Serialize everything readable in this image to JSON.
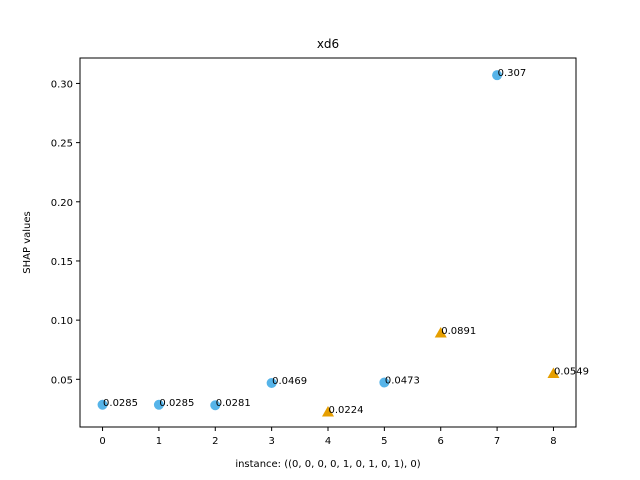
{
  "chart_data": {
    "type": "scatter",
    "title": "xd6",
    "xlabel": "instance: ((0, 0, 0, 0, 1, 0, 1, 0, 1), 0)",
    "ylabel": "SHAP values",
    "xlim": [
      -0.4,
      8.4
    ],
    "ylim": [
      0.0097,
      0.3215
    ],
    "x_ticks": [
      0,
      1,
      2,
      3,
      4,
      5,
      6,
      7,
      8
    ],
    "y_ticks": [
      0.05,
      0.1,
      0.15,
      0.2,
      0.25,
      0.3
    ],
    "y_tick_labels": [
      "0.05",
      "0.10",
      "0.15",
      "0.20",
      "0.25",
      "0.30"
    ],
    "grid": false,
    "legend": "none",
    "points": [
      {
        "x": 0,
        "y": 0.0285,
        "label": "0.0285",
        "marker": "circle",
        "color": "#56b4e9"
      },
      {
        "x": 1,
        "y": 0.0285,
        "label": "0.0285",
        "marker": "circle",
        "color": "#56b4e9"
      },
      {
        "x": 2,
        "y": 0.0281,
        "label": "0.0281",
        "marker": "circle",
        "color": "#56b4e9"
      },
      {
        "x": 3,
        "y": 0.0469,
        "label": "0.0469",
        "marker": "circle",
        "color": "#56b4e9"
      },
      {
        "x": 4,
        "y": 0.0224,
        "label": "0.0224",
        "marker": "triangle",
        "color": "#e69f00"
      },
      {
        "x": 5,
        "y": 0.0473,
        "label": "0.0473",
        "marker": "circle",
        "color": "#56b4e9"
      },
      {
        "x": 6,
        "y": 0.0891,
        "label": "0.0891",
        "marker": "triangle",
        "color": "#e69f00"
      },
      {
        "x": 7,
        "y": 0.307,
        "label": "0.307",
        "marker": "circle",
        "color": "#56b4e9"
      },
      {
        "x": 8,
        "y": 0.0549,
        "label": "0.0549",
        "marker": "triangle",
        "color": "#e69f00"
      }
    ]
  }
}
